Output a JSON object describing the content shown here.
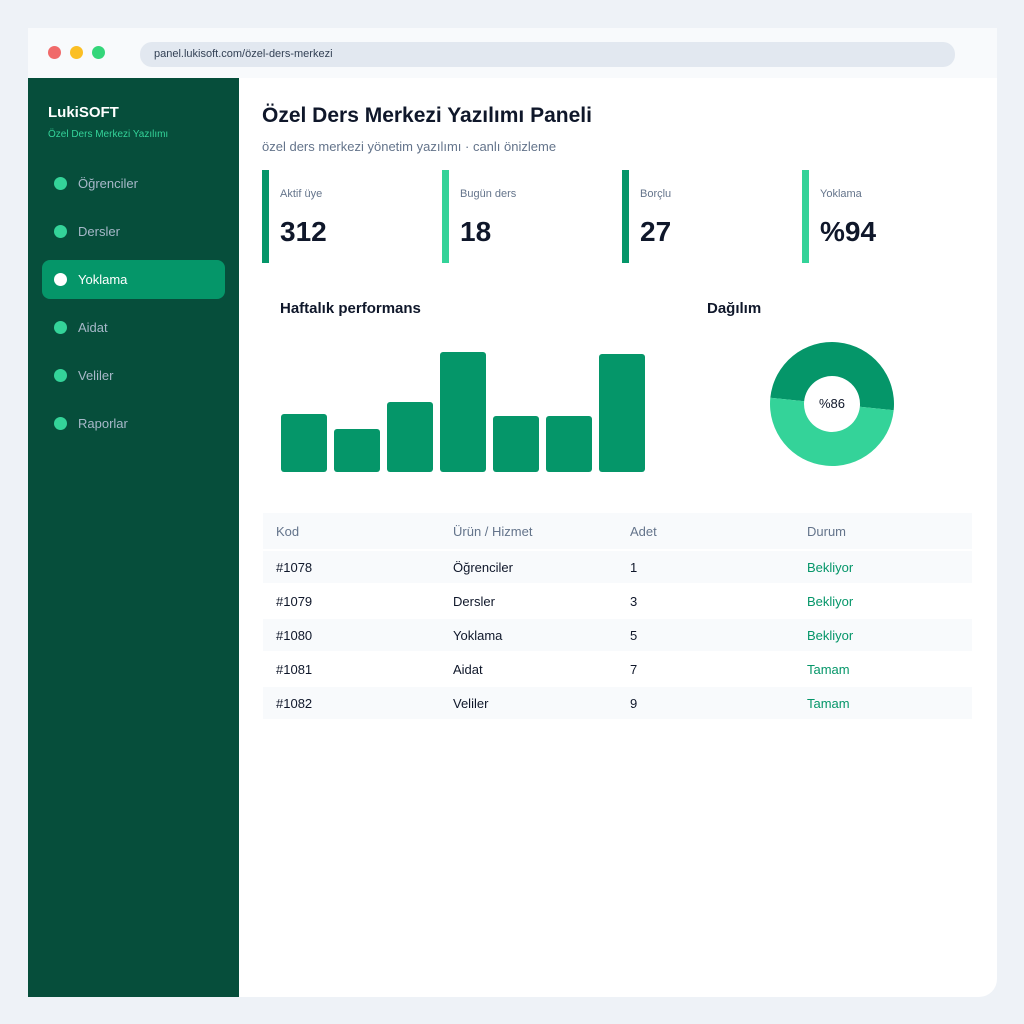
{
  "browser": {
    "url": "panel.lukisoft.com/özel-ders-merkezi"
  },
  "sidebar": {
    "brand": "LukiSOFT",
    "brand_sub": "Özel Ders Merkezi Yazılımı",
    "items": [
      {
        "label": "Öğrenciler",
        "active": false
      },
      {
        "label": "Dersler",
        "active": false
      },
      {
        "label": "Yoklama",
        "active": true
      },
      {
        "label": "Aidat",
        "active": false
      },
      {
        "label": "Veliler",
        "active": false
      },
      {
        "label": "Raporlar",
        "active": false
      }
    ]
  },
  "header": {
    "title": "Özel Ders Merkezi Yazılımı Paneli",
    "subtitle": "özel ders merkezi yönetim yazılımı · canlı önizleme"
  },
  "stats": [
    {
      "label": "Aktif üye",
      "value": "312",
      "color": "#059669"
    },
    {
      "label": "Bugün ders",
      "value": "18",
      "color": "#34d399"
    },
    {
      "label": "Borçlu",
      "value": "27",
      "color": "#059669"
    },
    {
      "label": "Yoklama",
      "value": "%94",
      "color": "#34d399"
    }
  ],
  "charts": {
    "bar_title": "Haftalık performans",
    "donut_title": "Dağılım",
    "donut_label": "%86"
  },
  "chart_data": [
    {
      "type": "bar",
      "title": "Haftalık performans",
      "values": [
        48,
        36,
        58,
        100,
        47,
        47,
        98
      ],
      "color": "#059669"
    },
    {
      "type": "pie",
      "title": "Dağılım",
      "center_label": "%86",
      "slices": [
        {
          "value": 50,
          "color": "#059669"
        },
        {
          "value": 50,
          "color": "#34d399"
        }
      ]
    }
  ],
  "table": {
    "headers": [
      "Kod",
      "Ürün / Hizmet",
      "Adet",
      "Durum"
    ],
    "rows": [
      {
        "kod": "#1078",
        "urun": "Öğrenciler",
        "adet": "1",
        "durum": "Bekliyor"
      },
      {
        "kod": "#1079",
        "urun": "Dersler",
        "adet": "3",
        "durum": "Bekliyor"
      },
      {
        "kod": "#1080",
        "urun": "Yoklama",
        "adet": "5",
        "durum": "Bekliyor"
      },
      {
        "kod": "#1081",
        "urun": "Aidat",
        "adet": "7",
        "durum": "Tamam"
      },
      {
        "kod": "#1082",
        "urun": "Veliler",
        "adet": "9",
        "durum": "Tamam"
      }
    ]
  },
  "colors": {
    "accent": "#059669",
    "accent_light": "#34d399",
    "sidebar": "#064e3b"
  }
}
